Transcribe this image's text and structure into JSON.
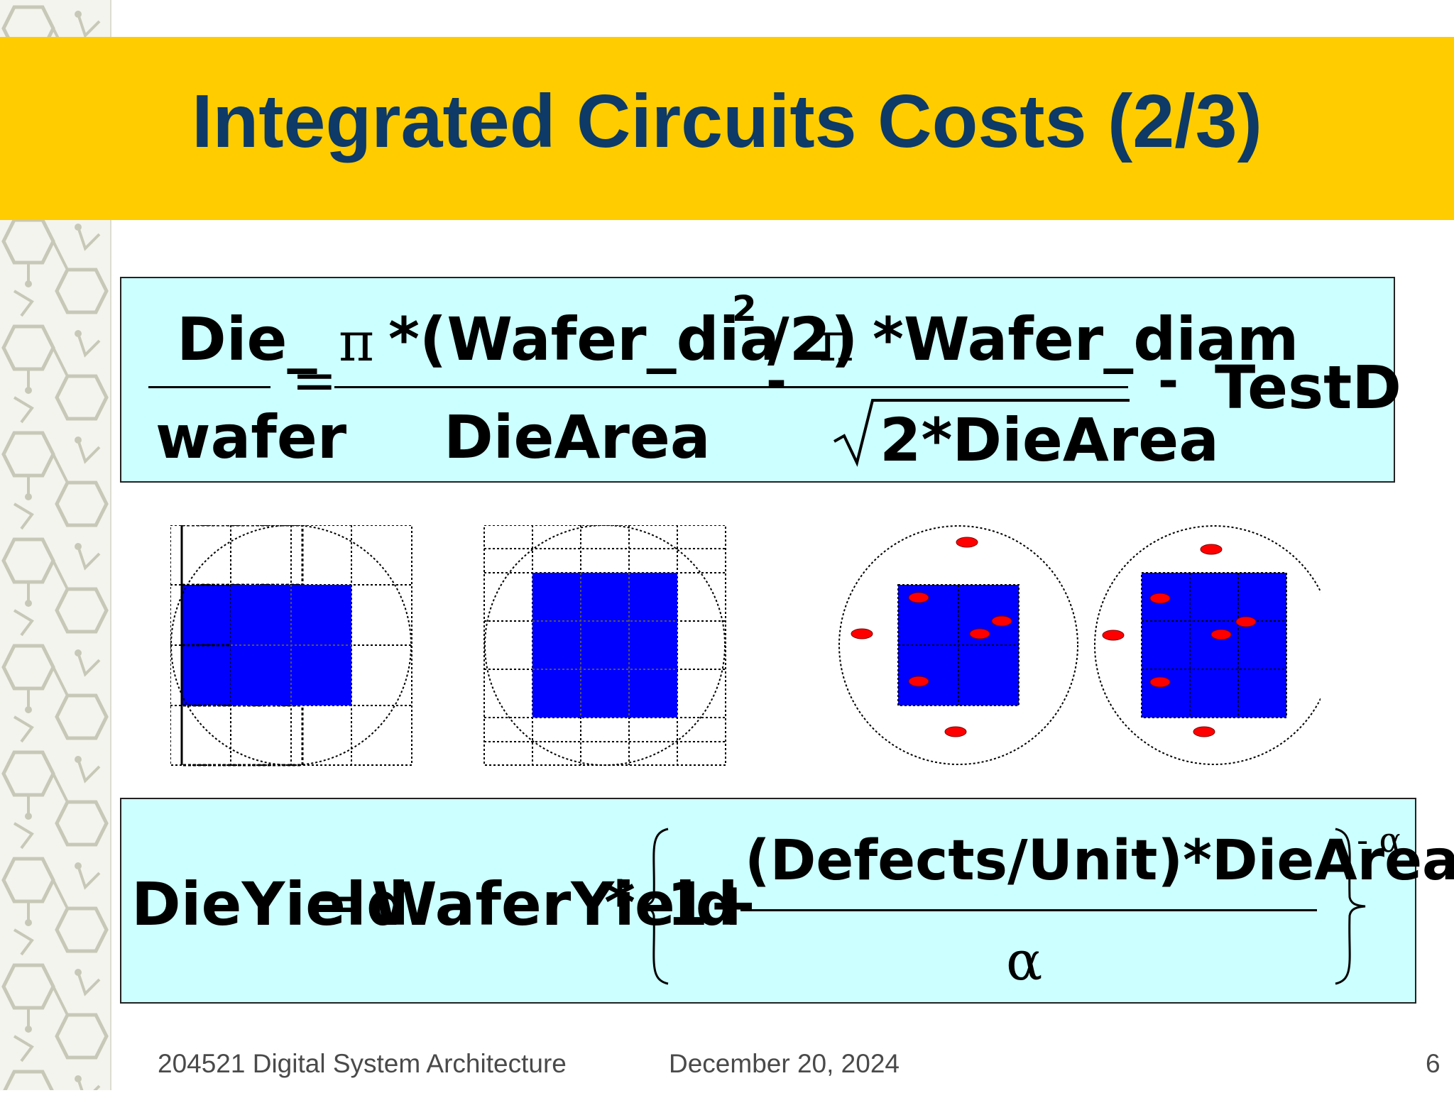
{
  "slide": {
    "title": "Integrated Circuits Costs (2/3)"
  },
  "formula_dies_per_wafer": {
    "lhs_top": "Die_",
    "lhs_bottom": "wafer",
    "equals": "=",
    "pi1": "π",
    "t1_numerator": "*(Wafer_dia",
    "t1_div": "/2)",
    "t1_exponent": "2",
    "t1_denominator": "DieArea",
    "minus1": "-",
    "pi2": "π",
    "t2_numerator": "*Wafer_diam",
    "t2_denominator": "2*DieArea",
    "minus2": "-",
    "t3": "TestD"
  },
  "formula_die_yield": {
    "lhs": "DieYield",
    "equals": "=",
    "wafer_yield": "WaferYield",
    "times": "*",
    "one_plus": "1+",
    "numerator": "(Defects/Unit)*DieArea",
    "denominator": "α",
    "exponent": "- α"
  },
  "footer": {
    "course": "204521 Digital System Architecture",
    "date": "December 20, 2024",
    "page": "6"
  },
  "colors": {
    "title_band": "#ffcc00",
    "title_text": "#0d3a66",
    "formula_bg": "#ccffff",
    "die_fill": "#0000ff",
    "defect": "#ff0000"
  }
}
